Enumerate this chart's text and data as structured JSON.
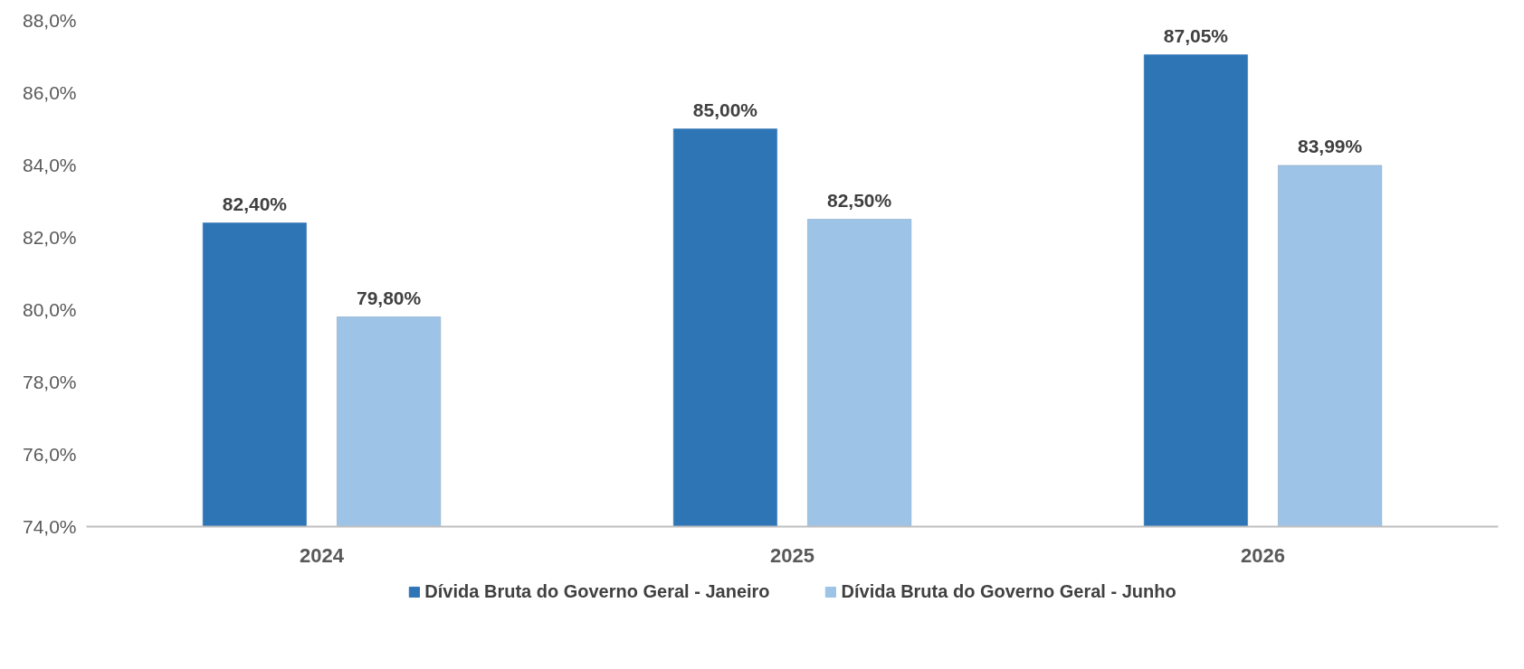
{
  "chart_data": {
    "type": "bar",
    "categories": [
      "2024",
      "2025",
      "2026"
    ],
    "series": [
      {
        "name": "Dívida Bruta do Governo Geral - Janeiro",
        "color": "#2e75b6",
        "values": [
          82.4,
          85.0,
          87.05
        ],
        "value_labels": [
          "82,40%",
          "85,00%",
          "87,05%"
        ]
      },
      {
        "name": "Dívida Bruta do Governo Geral - Junho",
        "color": "#9dc3e6",
        "values": [
          79.8,
          82.5,
          83.99
        ],
        "value_labels": [
          "79,80%",
          "82,50%",
          "83,99%"
        ]
      }
    ],
    "ylim": [
      74,
      88
    ],
    "yticks": [
      {
        "value": 74,
        "label": "74,0%"
      },
      {
        "value": 76,
        "label": "76,0%"
      },
      {
        "value": 78,
        "label": "78,0%"
      },
      {
        "value": 80,
        "label": "80,0%"
      },
      {
        "value": 82,
        "label": "82,0%"
      },
      {
        "value": 84,
        "label": "84,0%"
      },
      {
        "value": 86,
        "label": "86,0%"
      },
      {
        "value": 88,
        "label": "88,0%"
      }
    ],
    "grid": false,
    "legend": "bottom"
  }
}
